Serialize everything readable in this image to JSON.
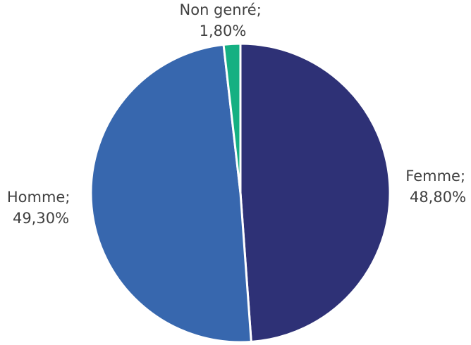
{
  "chart_data": {
    "type": "pie",
    "title": "",
    "slices": [
      {
        "category": "Femme",
        "value": 48.8,
        "label_name": "Femme;",
        "label_value": "48,80%",
        "color": "#2e3176"
      },
      {
        "category": "Homme",
        "value": 49.3,
        "label_name": "Homme;",
        "label_value": "49,30%",
        "color": "#3767ae"
      },
      {
        "category": "Non genré",
        "value": 1.8,
        "label_name": "Non genré;",
        "label_value": "1,80%",
        "color": "#15b082"
      }
    ],
    "legend": "none",
    "start_angle": "12 o'clock",
    "direction": "clockwise"
  }
}
